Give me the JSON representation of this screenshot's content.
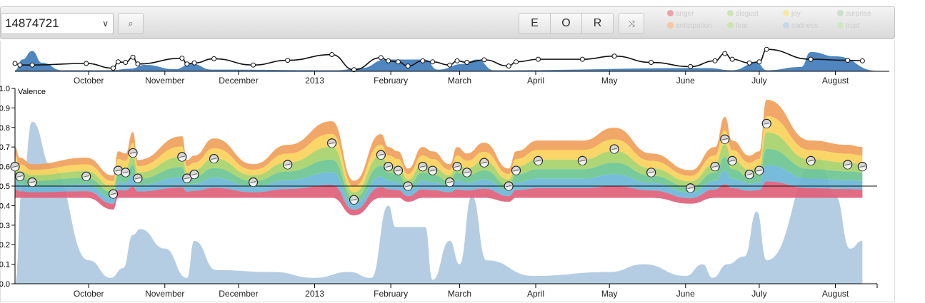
{
  "toolbar": {
    "user_select_value": "14874721",
    "search_label": "⌕",
    "mode_buttons": [
      "E",
      "O",
      "R"
    ],
    "shuffle_label": "⤨",
    "legend": [
      {
        "label": "anger",
        "color": "#e8a3a8"
      },
      {
        "label": "disgust",
        "color": "#cfe4b9"
      },
      {
        "label": "joy",
        "color": "#f6e9a0"
      },
      {
        "label": "surprise",
        "color": "#c9e2c8"
      },
      {
        "label": "anticipation",
        "color": "#f5c8a0"
      },
      {
        "label": "fear",
        "color": "#cde4b0"
      },
      {
        "label": "sadness",
        "color": "#c3d9ea"
      },
      {
        "label": "trust",
        "color": "#cfe7c0"
      }
    ]
  },
  "chart_data": {
    "type": "area",
    "ylabel": "Valence",
    "ylim": [
      0.0,
      1.0
    ],
    "yticks": [
      "0.0",
      "0.1",
      "0.2",
      "0.3",
      "0.4",
      "0.5",
      "0.6",
      "0.7",
      "0.8",
      "0.9",
      "1.0"
    ],
    "xlim": [
      "2012-09-01",
      "2013-08-18"
    ],
    "month_ticks": [
      {
        "date": "2012-10-01",
        "label": "October"
      },
      {
        "date": "2012-11-01",
        "label": "November"
      },
      {
        "date": "2012-12-01",
        "label": "December"
      },
      {
        "date": "2013-01-01",
        "label": "2013"
      },
      {
        "date": "2013-02-01",
        "label": "February"
      },
      {
        "date": "2013-03-01",
        "label": "March"
      },
      {
        "date": "2013-04-01",
        "label": "April"
      },
      {
        "date": "2013-05-01",
        "label": "May"
      },
      {
        "date": "2013-06-01",
        "label": "June"
      },
      {
        "date": "2013-07-01",
        "label": "July"
      },
      {
        "date": "2013-08-01",
        "label": "August"
      }
    ],
    "reference_line": 0.5,
    "valence_points": [
      {
        "date": "2012-09-01",
        "y": 0.6
      },
      {
        "date": "2012-09-03",
        "y": 0.55
      },
      {
        "date": "2012-09-08",
        "y": 0.52
      },
      {
        "date": "2012-09-30",
        "y": 0.55
      },
      {
        "date": "2012-10-11",
        "y": 0.46
      },
      {
        "date": "2012-10-13",
        "y": 0.58
      },
      {
        "date": "2012-10-16",
        "y": 0.57
      },
      {
        "date": "2012-10-19",
        "y": 0.67
      },
      {
        "date": "2012-10-21",
        "y": 0.54
      },
      {
        "date": "2012-11-08",
        "y": 0.65
      },
      {
        "date": "2012-11-10",
        "y": 0.54
      },
      {
        "date": "2012-11-13",
        "y": 0.56
      },
      {
        "date": "2012-11-21",
        "y": 0.64
      },
      {
        "date": "2012-12-07",
        "y": 0.52
      },
      {
        "date": "2012-12-21",
        "y": 0.61
      },
      {
        "date": "2013-01-08",
        "y": 0.72
      },
      {
        "date": "2013-01-17",
        "y": 0.43
      },
      {
        "date": "2013-01-28",
        "y": 0.66
      },
      {
        "date": "2013-01-31",
        "y": 0.6
      },
      {
        "date": "2013-02-04",
        "y": 0.58
      },
      {
        "date": "2013-02-08",
        "y": 0.5
      },
      {
        "date": "2013-02-14",
        "y": 0.6
      },
      {
        "date": "2013-02-18",
        "y": 0.58
      },
      {
        "date": "2013-02-25",
        "y": 0.52
      },
      {
        "date": "2013-02-28",
        "y": 0.6
      },
      {
        "date": "2013-03-04",
        "y": 0.57
      },
      {
        "date": "2013-03-11",
        "y": 0.62
      },
      {
        "date": "2013-03-21",
        "y": 0.5
      },
      {
        "date": "2013-03-24",
        "y": 0.58
      },
      {
        "date": "2013-04-02",
        "y": 0.63
      },
      {
        "date": "2013-04-20",
        "y": 0.63
      },
      {
        "date": "2013-05-03",
        "y": 0.69
      },
      {
        "date": "2013-05-18",
        "y": 0.57
      },
      {
        "date": "2013-06-03",
        "y": 0.49
      },
      {
        "date": "2013-06-13",
        "y": 0.6
      },
      {
        "date": "2013-06-17",
        "y": 0.74
      },
      {
        "date": "2013-06-20",
        "y": 0.63
      },
      {
        "date": "2013-06-27",
        "y": 0.56
      },
      {
        "date": "2013-07-01",
        "y": 0.58
      },
      {
        "date": "2013-07-04",
        "y": 0.82
      },
      {
        "date": "2013-07-22",
        "y": 0.63
      },
      {
        "date": "2013-08-06",
        "y": 0.61
      },
      {
        "date": "2013-08-12",
        "y": 0.6
      }
    ],
    "emotion_layers": [
      {
        "name": "anticipation",
        "color": "#f0a05a"
      },
      {
        "name": "joy",
        "color": "#f8d35a"
      },
      {
        "name": "trust",
        "color": "#a8d36a"
      },
      {
        "name": "fear",
        "color": "#6cc592"
      },
      {
        "name": "sadness",
        "color": "#6cb6d8"
      },
      {
        "name": "anger",
        "color": "#e0607a"
      }
    ],
    "activity_series": [
      {
        "date": "2012-09-01",
        "y": 0.0
      },
      {
        "date": "2012-09-04",
        "y": 0.5
      },
      {
        "date": "2012-09-08",
        "y": 0.83
      },
      {
        "date": "2012-09-16",
        "y": 0.6
      },
      {
        "date": "2012-10-01",
        "y": 0.12
      },
      {
        "date": "2012-10-10",
        "y": 0.03
      },
      {
        "date": "2012-10-15",
        "y": 0.08
      },
      {
        "date": "2012-10-19",
        "y": 0.25
      },
      {
        "date": "2012-10-22",
        "y": 0.28
      },
      {
        "date": "2012-11-01",
        "y": 0.18
      },
      {
        "date": "2012-11-10",
        "y": 0.03
      },
      {
        "date": "2012-11-13",
        "y": 0.22
      },
      {
        "date": "2012-11-22",
        "y": 0.07
      },
      {
        "date": "2012-12-15",
        "y": 0.06
      },
      {
        "date": "2013-01-01",
        "y": 0.03
      },
      {
        "date": "2013-01-15",
        "y": 0.06
      },
      {
        "date": "2013-01-24",
        "y": 0.03
      },
      {
        "date": "2013-01-31",
        "y": 0.4
      },
      {
        "date": "2013-02-03",
        "y": 0.29
      },
      {
        "date": "2013-02-15",
        "y": 0.29
      },
      {
        "date": "2013-02-18",
        "y": 0.02
      },
      {
        "date": "2013-02-25",
        "y": 0.22
      },
      {
        "date": "2013-03-01",
        "y": 0.1
      },
      {
        "date": "2013-03-06",
        "y": 0.45
      },
      {
        "date": "2013-03-12",
        "y": 0.12
      },
      {
        "date": "2013-03-31",
        "y": 0.04
      },
      {
        "date": "2013-05-01",
        "y": 0.06
      },
      {
        "date": "2013-05-15",
        "y": 0.1
      },
      {
        "date": "2013-06-01",
        "y": 0.04
      },
      {
        "date": "2013-06-08",
        "y": 0.1
      },
      {
        "date": "2013-06-12",
        "y": 0.03
      },
      {
        "date": "2013-06-18",
        "y": 0.1
      },
      {
        "date": "2013-06-25",
        "y": 0.14
      },
      {
        "date": "2013-06-30",
        "y": 0.37
      },
      {
        "date": "2013-07-04",
        "y": 0.12
      },
      {
        "date": "2013-07-25",
        "y": 0.65
      },
      {
        "date": "2013-08-01",
        "y": 0.45
      },
      {
        "date": "2013-08-07",
        "y": 0.18
      },
      {
        "date": "2013-08-12",
        "y": 0.22
      }
    ],
    "overview": {
      "line_points": [
        {
          "date": "2012-09-01",
          "y": 0.55
        },
        {
          "date": "2012-09-03",
          "y": 0.52
        },
        {
          "date": "2012-09-08",
          "y": 0.52
        },
        {
          "date": "2012-09-30",
          "y": 0.55
        },
        {
          "date": "2012-10-11",
          "y": 0.46
        },
        {
          "date": "2012-10-13",
          "y": 0.58
        },
        {
          "date": "2012-10-16",
          "y": 0.57
        },
        {
          "date": "2012-10-19",
          "y": 0.67
        },
        {
          "date": "2012-10-21",
          "y": 0.54
        },
        {
          "date": "2012-11-08",
          "y": 0.65
        },
        {
          "date": "2012-11-10",
          "y": 0.54
        },
        {
          "date": "2012-11-13",
          "y": 0.56
        },
        {
          "date": "2012-11-21",
          "y": 0.64
        },
        {
          "date": "2012-12-07",
          "y": 0.52
        },
        {
          "date": "2012-12-21",
          "y": 0.61
        },
        {
          "date": "2013-01-08",
          "y": 0.72
        },
        {
          "date": "2013-01-17",
          "y": 0.43
        },
        {
          "date": "2013-01-28",
          "y": 0.66
        },
        {
          "date": "2013-01-31",
          "y": 0.6
        },
        {
          "date": "2013-02-04",
          "y": 0.58
        },
        {
          "date": "2013-02-08",
          "y": 0.5
        },
        {
          "date": "2013-02-14",
          "y": 0.6
        },
        {
          "date": "2013-02-18",
          "y": 0.58
        },
        {
          "date": "2013-02-25",
          "y": 0.52
        },
        {
          "date": "2013-02-28",
          "y": 0.6
        },
        {
          "date": "2013-03-04",
          "y": 0.57
        },
        {
          "date": "2013-03-11",
          "y": 0.62
        },
        {
          "date": "2013-03-21",
          "y": 0.5
        },
        {
          "date": "2013-03-24",
          "y": 0.58
        },
        {
          "date": "2013-04-02",
          "y": 0.63
        },
        {
          "date": "2013-04-20",
          "y": 0.63
        },
        {
          "date": "2013-05-03",
          "y": 0.69
        },
        {
          "date": "2013-05-18",
          "y": 0.57
        },
        {
          "date": "2013-06-03",
          "y": 0.49
        },
        {
          "date": "2013-06-13",
          "y": 0.6
        },
        {
          "date": "2013-06-17",
          "y": 0.74
        },
        {
          "date": "2013-06-20",
          "y": 0.63
        },
        {
          "date": "2013-06-27",
          "y": 0.56
        },
        {
          "date": "2013-07-01",
          "y": 0.58
        },
        {
          "date": "2013-07-04",
          "y": 0.82
        },
        {
          "date": "2013-07-22",
          "y": 0.63
        },
        {
          "date": "2013-08-06",
          "y": 0.61
        },
        {
          "date": "2013-08-12",
          "y": 0.6
        }
      ],
      "area": [
        {
          "date": "2012-09-01",
          "y": 0.05
        },
        {
          "date": "2012-09-04",
          "y": 0.55
        },
        {
          "date": "2012-09-08",
          "y": 0.95
        },
        {
          "date": "2012-09-12",
          "y": 0.4
        },
        {
          "date": "2012-09-20",
          "y": 0.05
        },
        {
          "date": "2012-10-10",
          "y": 0.05
        },
        {
          "date": "2012-10-18",
          "y": 0.12
        },
        {
          "date": "2012-10-24",
          "y": 0.3
        },
        {
          "date": "2012-11-05",
          "y": 0.1
        },
        {
          "date": "2012-11-12",
          "y": 0.35
        },
        {
          "date": "2012-11-20",
          "y": 0.08
        },
        {
          "date": "2013-01-10",
          "y": 0.05
        },
        {
          "date": "2013-01-20",
          "y": 0.15
        },
        {
          "date": "2013-01-30",
          "y": 0.55
        },
        {
          "date": "2013-02-15",
          "y": 0.55
        },
        {
          "date": "2013-02-20",
          "y": 0.08
        },
        {
          "date": "2013-03-03",
          "y": 0.35
        },
        {
          "date": "2013-03-08",
          "y": 0.55
        },
        {
          "date": "2013-03-15",
          "y": 0.05
        },
        {
          "date": "2013-06-10",
          "y": 0.15
        },
        {
          "date": "2013-06-20",
          "y": 0.05
        },
        {
          "date": "2013-06-30",
          "y": 0.4
        },
        {
          "date": "2013-07-04",
          "y": 0.05
        },
        {
          "date": "2013-07-18",
          "y": 0.2
        },
        {
          "date": "2013-07-22",
          "y": 0.9
        },
        {
          "date": "2013-08-01",
          "y": 0.7
        },
        {
          "date": "2013-08-18",
          "y": 0.02
        }
      ]
    }
  }
}
